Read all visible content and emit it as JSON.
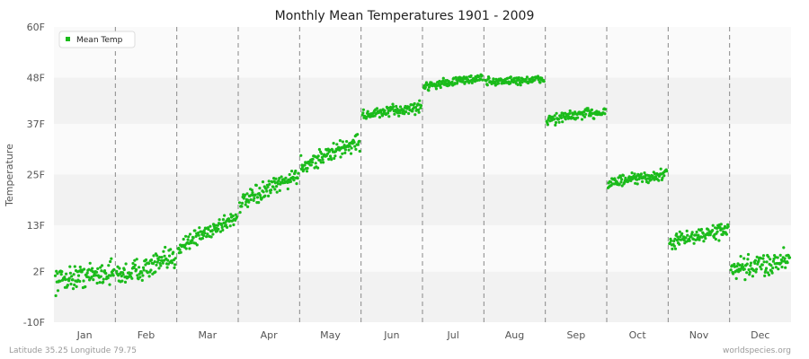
{
  "chart_data": {
    "type": "scatter",
    "title": "Monthly Mean Temperatures 1901 - 2009",
    "ylabel": "Temperature",
    "xlabel": "",
    "y_ticks": [
      "-10F",
      "2F",
      "13F",
      "25F",
      "37F",
      "48F",
      "60F"
    ],
    "y_tick_values": [
      -10,
      2,
      13,
      25,
      37,
      48,
      60
    ],
    "ylim": [
      -10,
      60
    ],
    "categories": [
      "Jan",
      "Feb",
      "Mar",
      "Apr",
      "May",
      "Jun",
      "Jul",
      "Aug",
      "Sep",
      "Oct",
      "Nov",
      "Dec"
    ],
    "grid": "horizontal bands, dashed vertical month separators",
    "legend": {
      "placement": "top-left",
      "entries": [
        "Mean Temp"
      ]
    },
    "series": [
      {
        "name": "Mean Temp",
        "color": "#1bbb1b",
        "years": 109,
        "monthly_ranges": [
          {
            "month": "Jan",
            "start": 0,
            "end": 2,
            "spread": 4
          },
          {
            "month": "Feb",
            "start": 1,
            "end": 5,
            "spread": 4
          },
          {
            "month": "Mar",
            "start": 8,
            "end": 15,
            "spread": 3
          },
          {
            "month": "Apr",
            "start": 18,
            "end": 25,
            "spread": 3
          },
          {
            "month": "May",
            "start": 27,
            "end": 33,
            "spread": 3
          },
          {
            "month": "Jun",
            "start": 39,
            "end": 41,
            "spread": 2
          },
          {
            "month": "Jul",
            "start": 46,
            "end": 48,
            "spread": 1.5
          },
          {
            "month": "Aug",
            "start": 47,
            "end": 47.5,
            "spread": 1.5
          },
          {
            "month": "Sep",
            "start": 38,
            "end": 40,
            "spread": 2
          },
          {
            "month": "Oct",
            "start": 23,
            "end": 25,
            "spread": 2
          },
          {
            "month": "Nov",
            "start": 9,
            "end": 12,
            "spread": 2.5
          },
          {
            "month": "Dec",
            "start": 2,
            "end": 5,
            "spread": 4
          }
        ]
      }
    ]
  },
  "footer": {
    "left": "Latitude 35.25 Longitude 79.75",
    "right": "worldspecies.org"
  }
}
